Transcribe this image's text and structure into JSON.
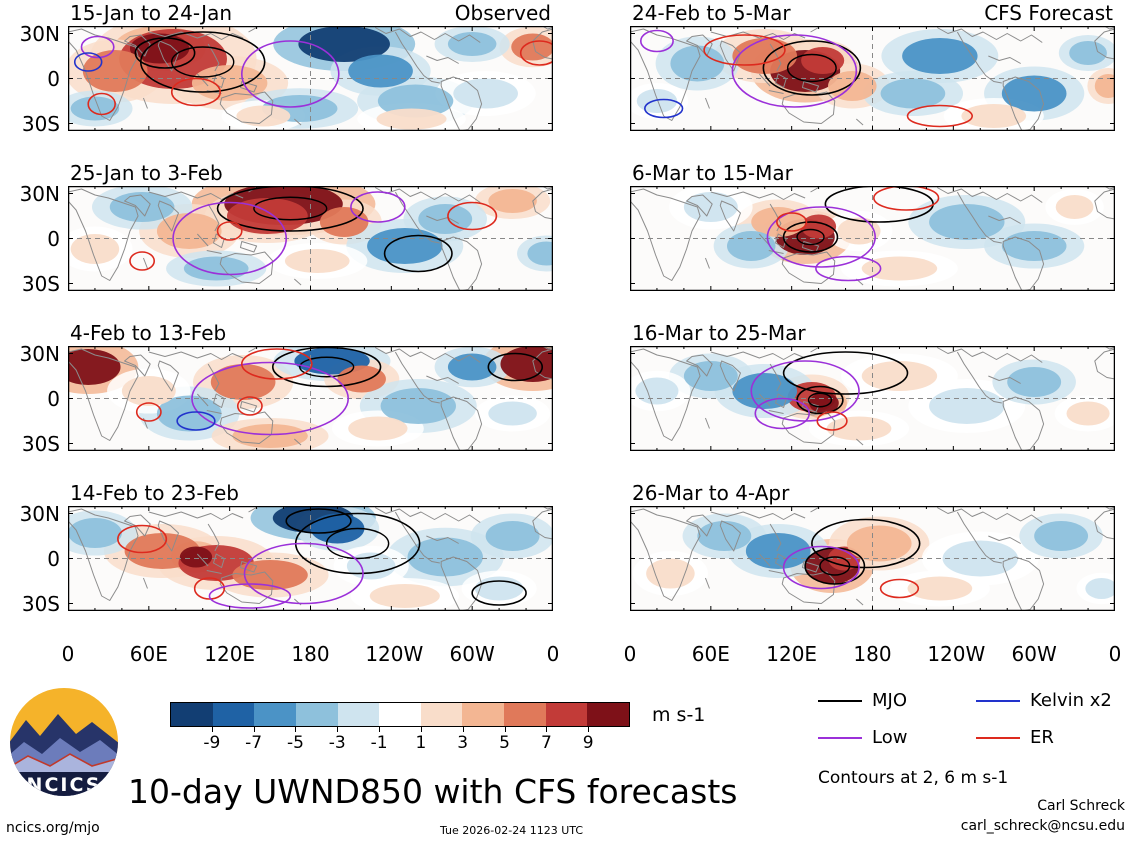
{
  "columns": {
    "left_header": "Observed",
    "right_header": "CFS Forecast"
  },
  "chart_data": {
    "type": "heatmap",
    "title": "10-day UWND850 with CFS forecasts",
    "variable": "UWND850",
    "units": "m s-1",
    "x_ticks": [
      "0",
      "60E",
      "120E",
      "180",
      "120W",
      "60W",
      "0"
    ],
    "x_tick_lons": [
      0,
      60,
      120,
      180,
      240,
      300,
      360
    ],
    "y_ticks": [
      {
        "label": "30N",
        "lat": 30
      },
      {
        "label": "0",
        "lat": 0
      },
      {
        "label": "30S",
        "lat": -30
      }
    ],
    "lat_range": [
      -35,
      35
    ],
    "colorbar": {
      "label": "m s-1",
      "ticks": [
        -9,
        -7,
        -5,
        -3,
        -1,
        1,
        3,
        5,
        7,
        9
      ],
      "colors": [
        "#123e73",
        "#1f62a5",
        "#4b93c6",
        "#8ec1dc",
        "#cfe4ef",
        "#ffffff",
        "#f9ddca",
        "#f3b693",
        "#e0795a",
        "#c23b38",
        "#7e1118"
      ]
    },
    "legend": [
      {
        "name": "MJO",
        "color": "#000000"
      },
      {
        "name": "Kelvin x2",
        "color": "#2233cc"
      },
      {
        "name": "Low",
        "color": "#9b30d9"
      },
      {
        "name": "ER",
        "color": "#dd2a1e"
      }
    ],
    "contour_note": "Contours at 2, 6 m s-1",
    "panels": [
      {
        "title": "15-Jan to 24-Jan",
        "column": "left",
        "header": "Observed",
        "blobs": [
          [
            78,
            22,
            40,
            20,
            8
          ],
          [
            68,
            15,
            22,
            10,
            10
          ],
          [
            35,
            30,
            24,
            14,
            6
          ],
          [
            120,
            38,
            28,
            12,
            4
          ],
          [
            345,
            14,
            16,
            9,
            6
          ],
          [
            205,
            12,
            34,
            12,
            -10
          ],
          [
            232,
            30,
            24,
            11,
            -6
          ],
          [
            258,
            50,
            28,
            11,
            -4
          ],
          [
            172,
            55,
            28,
            9,
            -4
          ],
          [
            20,
            55,
            18,
            8,
            -4
          ],
          [
            310,
            45,
            24,
            10,
            -2
          ],
          [
            300,
            12,
            18,
            8,
            -4
          ],
          [
            255,
            62,
            26,
            7,
            2
          ],
          [
            145,
            60,
            20,
            7,
            2
          ]
        ],
        "contours": [
          [
            "MJO",
            100,
            24,
            46,
            20,
            2
          ],
          [
            "MJO",
            72,
            18,
            22,
            10
          ],
          [
            "Low",
            165,
            32,
            36,
            22
          ],
          [
            "ER",
            25,
            52,
            10,
            7
          ],
          [
            "ER",
            95,
            44,
            18,
            9
          ],
          [
            "Low",
            22,
            14,
            12,
            7
          ],
          [
            "Kelvin",
            15,
            24,
            10,
            6
          ],
          [
            "ER",
            350,
            18,
            14,
            8
          ]
        ]
      },
      {
        "title": "25-Jan to 3-Feb",
        "column": "left",
        "blobs": [
          [
            160,
            12,
            44,
            14,
            10
          ],
          [
            148,
            20,
            30,
            12,
            8
          ],
          [
            90,
            30,
            24,
            12,
            4
          ],
          [
            205,
            24,
            18,
            10,
            6
          ],
          [
            330,
            10,
            18,
            8,
            4
          ],
          [
            250,
            40,
            28,
            12,
            -6
          ],
          [
            280,
            22,
            20,
            10,
            -4
          ],
          [
            55,
            14,
            24,
            10,
            -4
          ],
          [
            110,
            55,
            24,
            8,
            -4
          ],
          [
            355,
            45,
            14,
            8,
            -4
          ],
          [
            20,
            42,
            18,
            10,
            2
          ],
          [
            185,
            50,
            24,
            8,
            2
          ]
        ],
        "contours": [
          [
            "MJO",
            165,
            15,
            54,
            15,
            2
          ],
          [
            "Low",
            120,
            35,
            42,
            24
          ],
          [
            "ER",
            55,
            50,
            9,
            6
          ],
          [
            "ER",
            120,
            30,
            9,
            6
          ],
          [
            "Low",
            230,
            14,
            20,
            10
          ],
          [
            "MJO",
            260,
            45,
            25,
            12
          ],
          [
            "ER",
            300,
            20,
            18,
            9
          ]
        ]
      },
      {
        "title": "4-Feb to 13-Feb",
        "column": "left",
        "blobs": [
          [
            15,
            14,
            24,
            12,
            10
          ],
          [
            345,
            12,
            24,
            12,
            10
          ],
          [
            130,
            24,
            24,
            12,
            6
          ],
          [
            196,
            10,
            28,
            9,
            -8
          ],
          [
            218,
            22,
            18,
            9,
            6
          ],
          [
            90,
            45,
            24,
            12,
            -4
          ],
          [
            260,
            40,
            28,
            12,
            -4
          ],
          [
            300,
            14,
            18,
            9,
            -6
          ],
          [
            150,
            60,
            28,
            8,
            4
          ],
          [
            230,
            55,
            22,
            8,
            2
          ],
          [
            60,
            30,
            20,
            10,
            2
          ],
          [
            330,
            45,
            18,
            8,
            -2
          ]
        ],
        "contours": [
          [
            "MJO",
            192,
            14,
            40,
            13,
            2
          ],
          [
            "Low",
            150,
            35,
            58,
            24
          ],
          [
            "ER",
            60,
            44,
            9,
            6
          ],
          [
            "ER",
            135,
            40,
            9,
            6
          ],
          [
            "Kelvin",
            95,
            50,
            14,
            6
          ],
          [
            "ER",
            155,
            12,
            26,
            10
          ],
          [
            "MJO",
            332,
            14,
            20,
            9
          ]
        ]
      },
      {
        "title": "14-Feb to 23-Feb",
        "column": "left",
        "blobs": [
          [
            182,
            8,
            30,
            10,
            -10
          ],
          [
            200,
            15,
            20,
            10,
            -8
          ],
          [
            70,
            30,
            28,
            12,
            6
          ],
          [
            110,
            38,
            28,
            12,
            8
          ],
          [
            150,
            46,
            28,
            10,
            6
          ],
          [
            95,
            34,
            12,
            7,
            10
          ],
          [
            280,
            34,
            28,
            13,
            -4
          ],
          [
            330,
            20,
            20,
            10,
            -4
          ],
          [
            20,
            18,
            20,
            10,
            -4
          ],
          [
            250,
            60,
            26,
            8,
            2
          ],
          [
            320,
            55,
            18,
            8,
            -2
          ],
          [
            225,
            40,
            18,
            9,
            -2
          ]
        ],
        "contours": [
          [
            "MJO",
            215,
            25,
            46,
            20,
            2
          ],
          [
            "MJO",
            186,
            10,
            24,
            8
          ],
          [
            "Low",
            175,
            45,
            44,
            20
          ],
          [
            "ER",
            105,
            55,
            11,
            7
          ],
          [
            "Low",
            135,
            60,
            30,
            8
          ],
          [
            "ER",
            55,
            22,
            18,
            9
          ],
          [
            "MJO",
            320,
            58,
            20,
            8
          ]
        ]
      },
      {
        "title": "24-Feb to 5-Mar",
        "column": "right",
        "header": "CFS Forecast",
        "blobs": [
          [
            130,
            30,
            26,
            14,
            10
          ],
          [
            143,
            23,
            16,
            9,
            8
          ],
          [
            100,
            20,
            24,
            12,
            6
          ],
          [
            165,
            40,
            18,
            10,
            4
          ],
          [
            50,
            25,
            20,
            12,
            -4
          ],
          [
            230,
            20,
            28,
            12,
            -6
          ],
          [
            210,
            45,
            24,
            10,
            -4
          ],
          [
            300,
            45,
            24,
            12,
            -6
          ],
          [
            340,
            18,
            14,
            8,
            -4
          ],
          [
            270,
            60,
            24,
            8,
            2
          ],
          [
            20,
            50,
            15,
            8,
            -2
          ],
          [
            355,
            40,
            10,
            8,
            4
          ]
        ],
        "contours": [
          [
            "MJO",
            135,
            28,
            36,
            18,
            2
          ],
          [
            "Low",
            122,
            30,
            46,
            24
          ],
          [
            "ER",
            85,
            16,
            30,
            10
          ],
          [
            "Kelvin",
            25,
            55,
            14,
            6
          ],
          [
            "ER",
            230,
            60,
            24,
            7
          ],
          [
            "Low",
            20,
            10,
            12,
            7
          ]
        ]
      },
      {
        "title": "6-Mar to 15-Mar",
        "column": "right",
        "blobs": [
          [
            130,
            34,
            22,
            12,
            10
          ],
          [
            140,
            27,
            13,
            8,
            8
          ],
          [
            110,
            24,
            20,
            10,
            4
          ],
          [
            90,
            40,
            18,
            10,
            -4
          ],
          [
            250,
            24,
            28,
            12,
            -4
          ],
          [
            300,
            40,
            24,
            10,
            -4
          ],
          [
            60,
            14,
            20,
            10,
            -2
          ],
          [
            200,
            55,
            28,
            8,
            2
          ],
          [
            330,
            14,
            14,
            8,
            2
          ],
          [
            170,
            30,
            16,
            9,
            2
          ]
        ],
        "contours": [
          [
            "MJO",
            185,
            12,
            40,
            12
          ],
          [
            "Low",
            142,
            34,
            40,
            20
          ],
          [
            "MJO",
            134,
            34,
            20,
            10,
            2
          ],
          [
            "ER",
            205,
            8,
            24,
            8
          ],
          [
            "Low",
            162,
            55,
            24,
            8
          ],
          [
            "ER",
            120,
            24,
            11,
            6
          ]
        ]
      },
      {
        "title": "16-Mar to 25-Mar",
        "column": "right",
        "blobs": [
          [
            135,
            34,
            18,
            10,
            8
          ],
          [
            144,
            38,
            11,
            7,
            10
          ],
          [
            100,
            30,
            24,
            12,
            -6
          ],
          [
            60,
            20,
            20,
            10,
            -4
          ],
          [
            250,
            40,
            28,
            12,
            -2
          ],
          [
            300,
            24,
            20,
            10,
            -4
          ],
          [
            200,
            20,
            28,
            10,
            2
          ],
          [
            170,
            55,
            24,
            8,
            2
          ],
          [
            20,
            30,
            16,
            9,
            -2
          ],
          [
            340,
            45,
            16,
            8,
            2
          ]
        ],
        "contours": [
          [
            "MJO",
            160,
            18,
            46,
            14
          ],
          [
            "Low",
            130,
            30,
            40,
            20
          ],
          [
            "MJO",
            141,
            36,
            17,
            9,
            2
          ],
          [
            "Low",
            113,
            45,
            20,
            10
          ],
          [
            "ER",
            150,
            50,
            11,
            6
          ]
        ]
      },
      {
        "title": "26-Mar to 4-Apr",
        "column": "right",
        "blobs": [
          [
            150,
            40,
            20,
            12,
            10
          ],
          [
            159,
            35,
            12,
            8,
            8
          ],
          [
            185,
            25,
            24,
            12,
            4
          ],
          [
            110,
            30,
            24,
            12,
            -6
          ],
          [
            70,
            20,
            20,
            10,
            -4
          ],
          [
            260,
            35,
            28,
            12,
            -2
          ],
          [
            320,
            20,
            20,
            10,
            -4
          ],
          [
            230,
            55,
            24,
            8,
            2
          ],
          [
            30,
            45,
            18,
            10,
            2
          ],
          [
            350,
            55,
            12,
            7,
            -2
          ]
        ],
        "contours": [
          [
            "MJO",
            175,
            25,
            40,
            16
          ],
          [
            "MJO",
            152,
            40,
            22,
            12,
            2
          ],
          [
            "Low",
            142,
            41,
            28,
            14
          ],
          [
            "ER",
            200,
            55,
            14,
            6
          ]
        ]
      }
    ]
  },
  "branding": {
    "logo_text": "NCICS"
  },
  "big_title": "10-day UWND850 with CFS forecasts",
  "footer": {
    "site": "ncics.org/mjo",
    "timestamp": "Tue 2026-02-24 1123 UTC",
    "author": "Carl Schreck",
    "email": "carl_schreck@ncsu.edu"
  }
}
